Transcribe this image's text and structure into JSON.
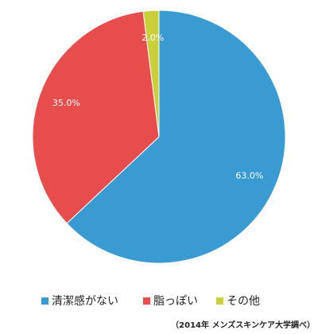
{
  "chart_data": {
    "type": "pie",
    "categories": [
      "清潔感がない",
      "脂っぽい",
      "その他"
    ],
    "values": [
      63,
      35,
      2
    ],
    "value_labels": [
      "63.0%",
      "35.0%",
      "2.0%"
    ],
    "colors": [
      "#3a9ad2",
      "#e84d4d",
      "#c9d03b"
    ],
    "note": "（2014年 メンズスキンケア大学調べ）"
  }
}
